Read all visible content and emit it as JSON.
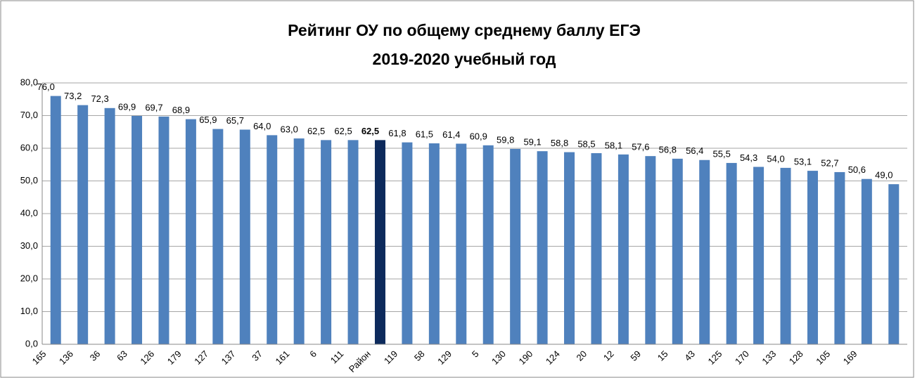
{
  "chart_data": {
    "type": "bar",
    "title": [
      "Рейтинг ОУ по общему среднему баллу ЕГЭ",
      "2019-2020 учебный год"
    ],
    "categories": [
      "165",
      "136",
      "36",
      "63",
      "126",
      "179",
      "127",
      "137",
      "37",
      "161",
      "6",
      "111",
      "Район",
      "119",
      "58",
      "129",
      "5",
      "130",
      "190",
      "124",
      "20",
      "12",
      "59",
      "15",
      "43",
      "125",
      "170",
      "133",
      "128",
      "105",
      "169",
      null
    ],
    "values": [
      76.0,
      73.2,
      72.3,
      69.9,
      69.7,
      68.9,
      65.9,
      65.7,
      64.0,
      63.0,
      62.5,
      62.5,
      62.5,
      61.8,
      61.5,
      61.4,
      60.9,
      59.8,
      59.1,
      58.8,
      58.5,
      58.1,
      57.6,
      56.8,
      56.4,
      55.5,
      54.3,
      54.0,
      53.1,
      52.7,
      50.6,
      49.0
    ],
    "value_labels": [
      "76,0",
      "73,2",
      "72,3",
      "69,9",
      "69,7",
      "68,9",
      "65,9",
      "65,7",
      "64,0",
      "63,0",
      "62,5",
      "62,5",
      "62,5",
      "61,8",
      "61,5",
      "61,4",
      "60,9",
      "59,8",
      "59,1",
      "58,8",
      "58,5",
      "58,1",
      "57,6",
      "56,8",
      "56,4",
      "55,5",
      "54,3",
      "54,0",
      "53,1",
      "52,7",
      "50,6",
      "49,0"
    ],
    "colors": [
      "#4f81bd",
      "#4f81bd",
      "#4f81bd",
      "#4f81bd",
      "#4f81bd",
      "#4f81bd",
      "#4f81bd",
      "#4f81bd",
      "#4f81bd",
      "#4f81bd",
      "#4f81bd",
      "#4f81bd",
      "#0d2a5c",
      "#4f81bd",
      "#4f81bd",
      "#4f81bd",
      "#4f81bd",
      "#4f81bd",
      "#4f81bd",
      "#4f81bd",
      "#4f81bd",
      "#4f81bd",
      "#4f81bd",
      "#4f81bd",
      "#4f81bd",
      "#4f81bd",
      "#4f81bd",
      "#4f81bd",
      "#4f81bd",
      "#4f81bd",
      "#4f81bd",
      "#4f81bd"
    ],
    "label_colors": [
      "#000000",
      "#000000",
      "#000000",
      "#000000",
      "#000000",
      "#000000",
      "#000000",
      "#000000",
      "#000000",
      "#000000",
      "#000000",
      "#000000",
      "#ff0000",
      "#000000",
      "#000000",
      "#000000",
      "#000000",
      "#000000",
      "#000000",
      "#000000",
      "#000000",
      "#000000",
      "#000000",
      "#000000",
      "#000000",
      "#000000",
      "#000000",
      "#000000",
      "#000000",
      "#000000",
      "#000000",
      "#000000"
    ],
    "ylim": [
      0,
      80
    ],
    "yticks": [
      {
        "value": 0,
        "label": "0,0"
      },
      {
        "value": 10,
        "label": "10,0"
      },
      {
        "value": 20,
        "label": "20,0"
      },
      {
        "value": 30,
        "label": "30,0"
      },
      {
        "value": 40,
        "label": "40,0"
      },
      {
        "value": 50,
        "label": "50,0"
      },
      {
        "value": 60,
        "label": "60,0"
      },
      {
        "value": 70,
        "label": "70,0"
      },
      {
        "value": 80,
        "label": "80,0"
      }
    ],
    "grid": true
  }
}
